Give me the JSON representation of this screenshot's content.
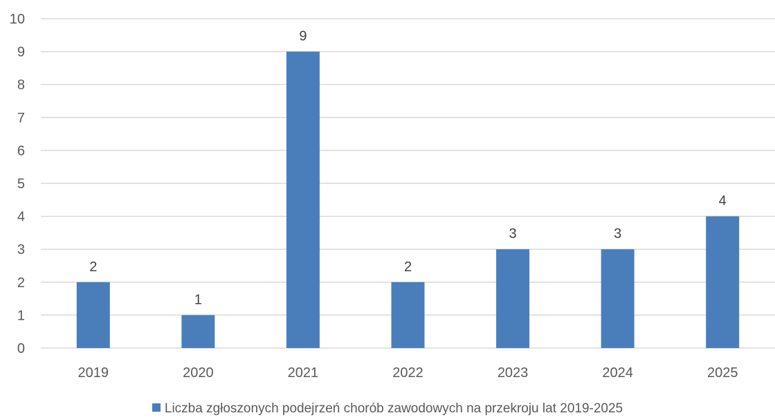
{
  "chart_data": {
    "type": "bar",
    "categories": [
      "2019",
      "2020",
      "2021",
      "2022",
      "2023",
      "2024",
      "2025"
    ],
    "series": [
      {
        "name": "Liczba zgłoszonych podejrzeń chorób zawodowych na przekroju lat 2019-2025",
        "values": [
          2,
          1,
          9,
          2,
          3,
          3,
          4
        ]
      }
    ],
    "data_labels": [
      "2",
      "1",
      "9",
      "2",
      "3",
      "3",
      "4"
    ],
    "y_ticks": [
      "0",
      "1",
      "2",
      "3",
      "4",
      "5",
      "6",
      "7",
      "8",
      "9",
      "10"
    ],
    "ylim": [
      0,
      10
    ],
    "grid": true,
    "legend_position": "bottom",
    "bar_color": "#4a7ebb",
    "grid_color": "#d9d9d9"
  }
}
